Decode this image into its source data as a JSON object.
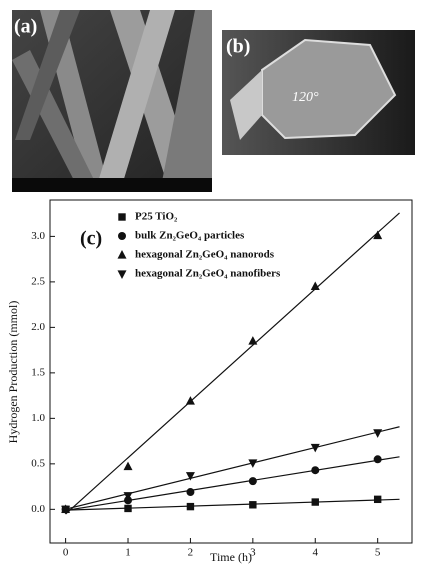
{
  "figure": {
    "panel_a_label": "(a)",
    "panel_b_label": "(b)",
    "angle_label": "120°"
  },
  "chart_data": {
    "type": "scatter",
    "panel_label": "(c)",
    "x_label": "Time (h)",
    "y_label": "Hydrogen Production (mmol)",
    "x": [
      0,
      1,
      2,
      3,
      4,
      5
    ],
    "series": [
      {
        "name": "P25 TiO₂",
        "color": "#111111",
        "marker": "square",
        "values": [
          0,
          0.01,
          0.03,
          0.05,
          0.08,
          0.11
        ]
      },
      {
        "name": "bulk Zn₂GeO₄ particles",
        "color": "#111111",
        "marker": "circle",
        "values": [
          0,
          0.1,
          0.19,
          0.31,
          0.43,
          0.55
        ]
      },
      {
        "name": "hexagonal Zn₂GeO₄ nanorods",
        "color": "#111111",
        "marker": "triangle-up",
        "values": [
          0,
          0.47,
          1.19,
          1.85,
          2.45,
          3.01
        ]
      },
      {
        "name": "hexagonal Zn₂GeO₄ nanofibers",
        "color": "#111111",
        "marker": "triangle-down",
        "values": [
          0,
          0.15,
          0.37,
          0.51,
          0.68,
          0.84
        ]
      }
    ],
    "xlim": [
      -0.25,
      5.55
    ],
    "ylim": [
      -0.37,
      3.4
    ],
    "xticks": [
      0,
      1,
      2,
      3,
      4,
      5
    ],
    "yticks": [
      {
        "value": 0,
        "label": "0.0"
      },
      0.5,
      {
        "value": 1,
        "label": "1.0"
      },
      1.5,
      {
        "value": 2,
        "label": "2.0"
      },
      2.5,
      {
        "value": 3,
        "label": "3.0"
      }
    ],
    "fit_lines": true
  }
}
